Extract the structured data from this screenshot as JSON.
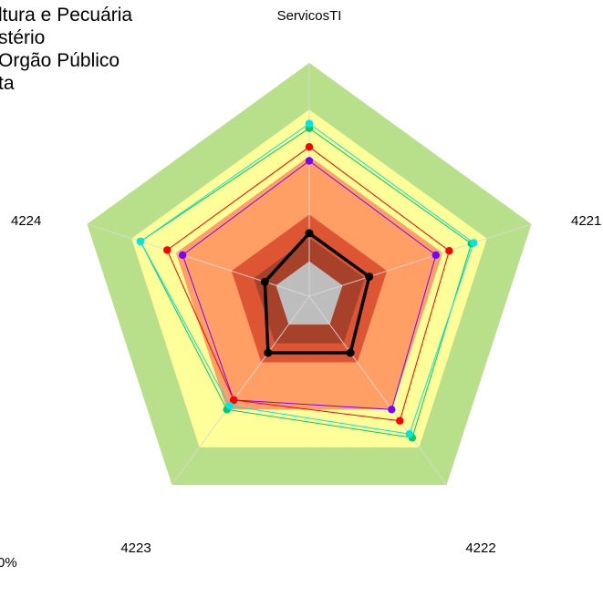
{
  "chart_data": {
    "type": "radar",
    "axes": [
      "ServicosTI",
      "4221",
      "4222",
      "4223",
      "4224"
    ],
    "bands": [
      {
        "max": 100,
        "color": "#b8e08a"
      },
      {
        "max": 80,
        "color": "#ffff99"
      },
      {
        "max": 60,
        "color": "#ff9f66"
      },
      {
        "max": 35,
        "color": "#dd5533"
      },
      {
        "max": 25,
        "color": "#a8412a"
      },
      {
        "max": 15,
        "color": "#bdbdbd"
      }
    ],
    "legend": [
      "ltura e Pecuária",
      "stério",
      "Orgão Público",
      "ta"
    ],
    "corner_text": "0%",
    "series": [
      {
        "color": "#000000",
        "values": [
          27,
          27,
          30,
          30,
          20
        ]
      },
      {
        "color": "#7b00ff",
        "values": [
          58,
          57,
          60,
          55,
          57
        ]
      },
      {
        "color": "#ff0000",
        "values": [
          64,
          63,
          66,
          55,
          64
        ]
      },
      {
        "color": "#00cc66",
        "values": [
          72,
          73,
          75,
          60,
          76
        ]
      },
      {
        "color": "#00e5e5",
        "values": [
          74,
          74,
          73,
          58,
          76
        ]
      }
    ]
  }
}
